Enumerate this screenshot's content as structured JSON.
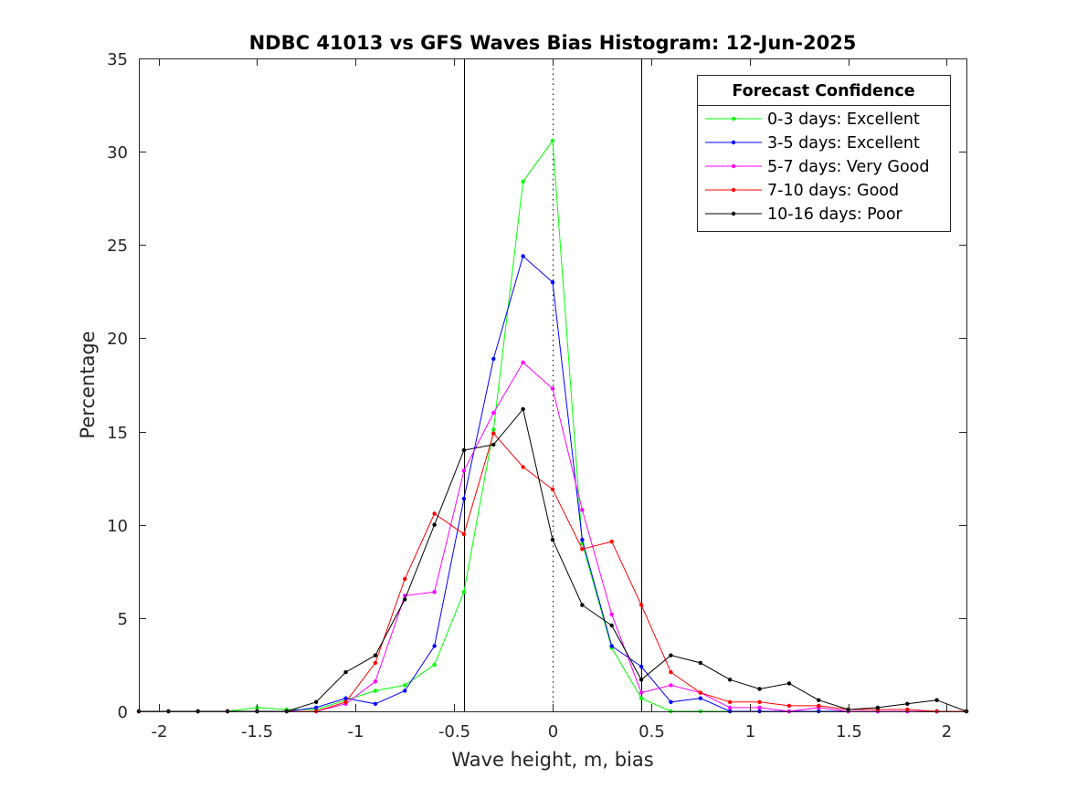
{
  "chart_data": {
    "type": "line",
    "title": "NDBC 41013 vs GFS Waves Bias Histogram: 12-Jun-2025",
    "xlabel": "Wave height, m, bias",
    "ylabel": "Percentage",
    "xlim": [
      -2.1,
      2.1
    ],
    "ylim": [
      0,
      35
    ],
    "xticks": [
      -2,
      -1.5,
      -1,
      -0.5,
      0,
      0.5,
      1,
      1.5,
      2
    ],
    "xtick_labels": [
      "-2",
      "-1.5",
      "-1",
      "-0.5",
      "0",
      "0.5",
      "1",
      "1.5",
      "2"
    ],
    "yticks": [
      0,
      5,
      10,
      15,
      20,
      25,
      30,
      35
    ],
    "ytick_labels": [
      "0",
      "5",
      "10",
      "15",
      "20",
      "25",
      "30",
      "35"
    ],
    "grid": false,
    "legend_position": "top-right",
    "legend_title": "Forecast Confidence",
    "vertical_lines": [
      {
        "x": -0.45,
        "style": "solid"
      },
      {
        "x": 0,
        "style": "dotted"
      },
      {
        "x": 0.45,
        "style": "solid"
      }
    ],
    "x": [
      -2.1,
      -1.95,
      -1.8,
      -1.65,
      -1.5,
      -1.35,
      -1.2,
      -1.05,
      -0.9,
      -0.75,
      -0.6,
      -0.45,
      -0.3,
      -0.15,
      0,
      0.15,
      0.3,
      0.45,
      0.6,
      0.75,
      0.9,
      1.05,
      1.2,
      1.35,
      1.5,
      1.65,
      1.8,
      1.95,
      2.1
    ],
    "series": [
      {
        "name": "0-3 days: Excellent",
        "color": "#00ff00",
        "values": [
          0,
          0,
          0,
          0,
          0.2,
          0.1,
          0.1,
          0.6,
          1.1,
          1.4,
          2.5,
          6.4,
          15.1,
          28.4,
          30.6,
          9.0,
          3.4,
          0.7,
          0,
          0,
          0,
          0,
          0,
          0,
          0,
          0,
          0,
          0,
          0
        ]
      },
      {
        "name": "3-5 days: Excellent",
        "color": "#0000ff",
        "values": [
          0,
          0,
          0,
          0,
          0,
          0,
          0.2,
          0.7,
          0.4,
          1.1,
          3.5,
          11.4,
          18.9,
          24.4,
          23.0,
          9.2,
          3.5,
          2.4,
          0.5,
          0.7,
          0,
          0,
          0,
          0,
          0,
          0,
          0,
          0,
          0
        ]
      },
      {
        "name": "5-7 days: Very Good",
        "color": "#ff00ff",
        "values": [
          0,
          0,
          0,
          0,
          0,
          0,
          0,
          0.4,
          1.6,
          6.2,
          6.4,
          12.9,
          16.0,
          18.7,
          17.3,
          10.8,
          5.2,
          1.0,
          1.4,
          1.0,
          0.2,
          0.2,
          0,
          0.2,
          0,
          0,
          0,
          0,
          0
        ]
      },
      {
        "name": "7-10 days: Good",
        "color": "#ff0000",
        "values": [
          0,
          0,
          0,
          0,
          0,
          0,
          0,
          0.5,
          2.6,
          7.1,
          10.6,
          9.5,
          14.9,
          13.1,
          11.9,
          8.7,
          9.1,
          5.7,
          2.1,
          1.0,
          0.5,
          0.5,
          0.3,
          0.3,
          0.1,
          0.1,
          0.1,
          0,
          0
        ]
      },
      {
        "name": "10-16 days: Poor",
        "color": "#000000",
        "values": [
          0,
          0,
          0,
          0,
          0,
          0,
          0.5,
          2.1,
          3.0,
          6.0,
          10.0,
          14.0,
          14.3,
          16.2,
          9.2,
          5.7,
          4.6,
          1.7,
          3.0,
          2.6,
          1.7,
          1.2,
          1.5,
          0.6,
          0.1,
          0.2,
          0.4,
          0.6,
          0
        ]
      }
    ]
  }
}
